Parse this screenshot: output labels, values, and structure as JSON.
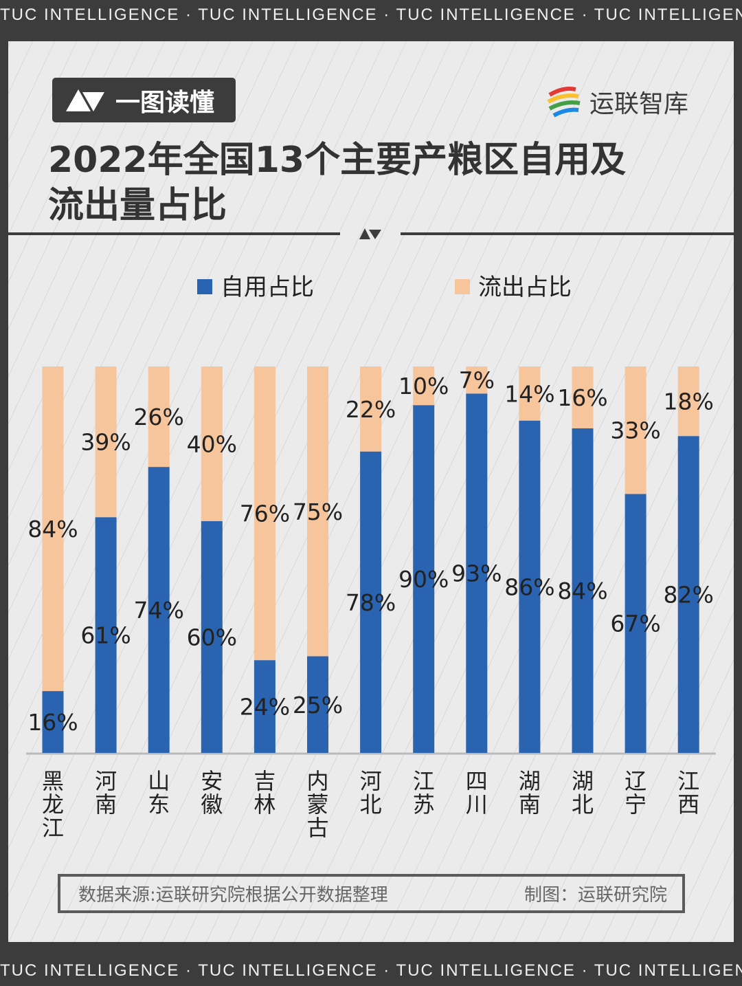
{
  "banner_text": "TUC INTELLIGENCE · TUC INTELLIGENCE · TUC INTELLIGENCE · TUC INTELLIGENCE",
  "badge_label": "一图读懂",
  "logo_text": "运联智库",
  "source_text": "数据来源:运联研究院根据公开数据整理",
  "credit_text": "制图：运联研究院",
  "chart_data": {
    "type": "bar",
    "stacked": true,
    "title": "2022年全国13个主要产粮区自用及流出量占比",
    "title_lines": [
      "2022年全国13个主要产粮区自用及",
      "流出量占比"
    ],
    "categories": [
      "黑龙江",
      "河南",
      "山东",
      "安徽",
      "吉林",
      "内蒙古",
      "河北",
      "江苏",
      "四川",
      "湖南",
      "湖北",
      "辽宁",
      "江西"
    ],
    "series": [
      {
        "name": "自用占比",
        "color": "#2a63b0",
        "values": [
          16,
          61,
          74,
          60,
          24,
          25,
          78,
          90,
          93,
          86,
          84,
          67,
          82
        ]
      },
      {
        "name": "流出占比",
        "color": "#f7c59b",
        "values": [
          84,
          39,
          26,
          40,
          76,
          75,
          22,
          10,
          7,
          14,
          16,
          33,
          18
        ]
      }
    ],
    "ylim": [
      0,
      100
    ],
    "unit": "%",
    "legend": "top",
    "grid": false
  }
}
